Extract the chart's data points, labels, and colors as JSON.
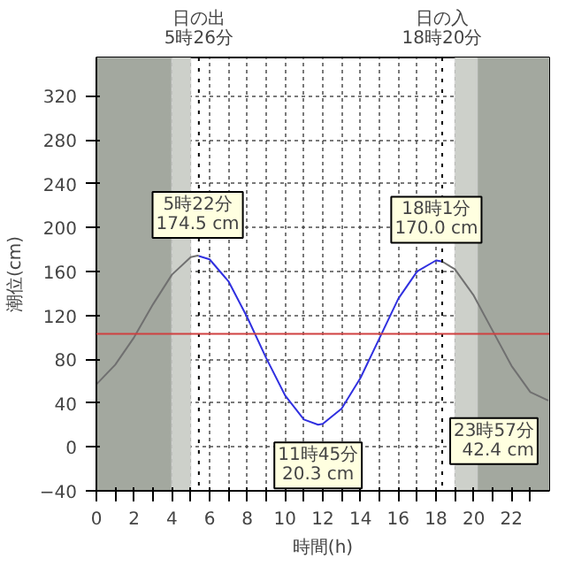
{
  "chart_data": {
    "type": "line",
    "xlabel": "時間(h)",
    "ylabel": "潮位(cm)",
    "xlim": [
      0,
      24
    ],
    "ylim": [
      -40,
      355
    ],
    "xticks": [
      0,
      {
        "value": 1,
        "label": null
      },
      2,
      {
        "value": 3,
        "label": null
      },
      4,
      {
        "value": 5,
        "label": null
      },
      6,
      {
        "value": 7,
        "label": null
      },
      8,
      {
        "value": 9,
        "label": null
      },
      10,
      {
        "value": 11,
        "label": null
      },
      12,
      {
        "value": 13,
        "label": null
      },
      14,
      {
        "value": 15,
        "label": null
      },
      16,
      {
        "value": 17,
        "label": null
      },
      18,
      {
        "value": 19,
        "label": null
      },
      20,
      {
        "value": 21,
        "label": null
      },
      22,
      {
        "value": 23,
        "label": null
      }
    ],
    "yticks": [
      -40,
      0,
      40,
      80,
      120,
      160,
      200,
      240,
      280,
      320
    ],
    "grid": true,
    "marker": "none",
    "line_style": "solid",
    "series": [
      {
        "color": "#707070",
        "x": [
          0,
          1,
          2,
          3,
          4,
          5,
          5.37,
          5.43
        ],
        "values": [
          57,
          75,
          100,
          130,
          157,
          173,
          174.5,
          174
        ]
      },
      {
        "color": "#3030e0",
        "x": [
          5.43,
          6,
          7,
          8,
          9,
          10,
          11,
          11.75,
          12,
          13,
          14,
          15,
          16,
          17,
          18,
          18.02,
          18.33
        ],
        "values": [
          174,
          171,
          151,
          118,
          81,
          47,
          25,
          20.3,
          21,
          35,
          63,
          99,
          135,
          160,
          170,
          170,
          169
        ]
      },
      {
        "color": "#707070",
        "x": [
          18.33,
          19,
          20,
          21,
          22,
          23,
          23.95
        ],
        "values": [
          169,
          162,
          138,
          106,
          74,
          50,
          42.4
        ]
      }
    ],
    "bands": [
      {
        "axis": "x",
        "from": 0,
        "to": 4,
        "color": "#a3a89f"
      },
      {
        "axis": "x",
        "from": 4,
        "to": 5,
        "color": "#cdd0ca"
      },
      {
        "axis": "x",
        "from": 19,
        "to": 20.2,
        "color": "#cdd0ca"
      },
      {
        "axis": "x",
        "from": 20.2,
        "to": 24,
        "color": "#a3a89f"
      }
    ],
    "ref_lines": [
      {
        "axis": "x",
        "value": 5.43,
        "label": "日の出\n5時26分",
        "color": "#000000",
        "line_style": "dotted"
      },
      {
        "axis": "x",
        "value": 18.33,
        "label": "日の入\n18時20分",
        "color": "#000000",
        "line_style": "dotted"
      },
      {
        "axis": "y",
        "value": 103,
        "color": "#d04040",
        "line_style": "solid"
      }
    ],
    "annotations": [
      {
        "text": "5時22分\n174.5 cm",
        "x": 5.37,
        "y": 174.5
      },
      {
        "text": "18時1分\n170.0 cm",
        "x": 18.02,
        "y": 170.0
      },
      {
        "text": "11時45分\n20.3 cm",
        "x": 11.75,
        "y": 20.3
      },
      {
        "text": "23時57分\n42.4 cm",
        "x": 23.95,
        "y": 42.4
      }
    ]
  }
}
